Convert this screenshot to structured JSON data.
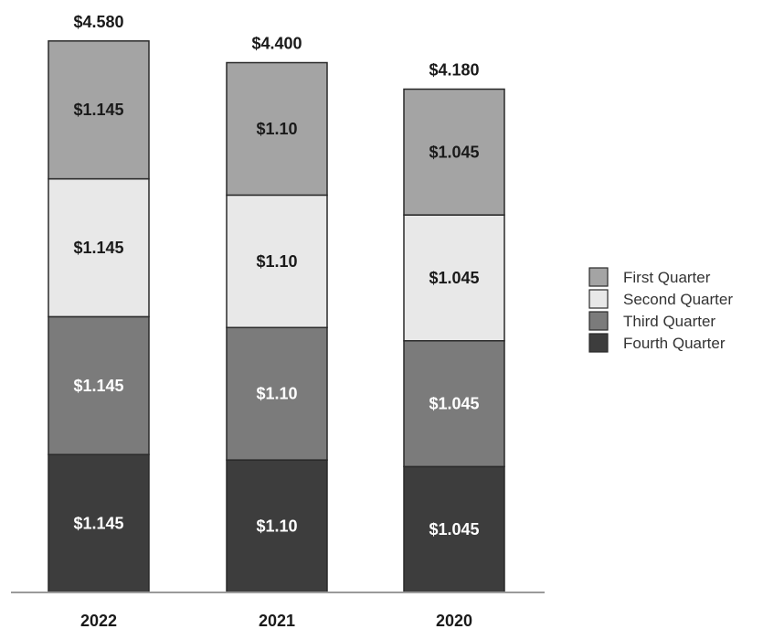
{
  "chart_data": {
    "type": "bar",
    "stacked": true,
    "categories": [
      "2022",
      "2021",
      "2020"
    ],
    "series": [
      {
        "name": "Fourth Quarter",
        "values": [
          1.145,
          1.1,
          1.045
        ],
        "labels": [
          "$1.145",
          "$1.10",
          "$1.045"
        ],
        "color": "#3d3d3d",
        "text_color": "#ffffff"
      },
      {
        "name": "Third Quarter",
        "values": [
          1.145,
          1.1,
          1.045
        ],
        "labels": [
          "$1.145",
          "$1.10",
          "$1.045"
        ],
        "color": "#7b7b7b",
        "text_color": "#ffffff"
      },
      {
        "name": "Second Quarter",
        "values": [
          1.145,
          1.1,
          1.045
        ],
        "labels": [
          "$1.145",
          "$1.10",
          "$1.045"
        ],
        "color": "#e8e8e8",
        "text_color": "#1a1a1a"
      },
      {
        "name": "First Quarter",
        "values": [
          1.145,
          1.1,
          1.045
        ],
        "labels": [
          "$1.145",
          "$1.10",
          "$1.045"
        ],
        "color": "#a4a4a4",
        "text_color": "#1a1a1a"
      }
    ],
    "totals": [
      4.58,
      4.4,
      4.18
    ],
    "total_labels": [
      "$4.580",
      "$4.400",
      "$4.180"
    ],
    "legend": {
      "position": "right",
      "entries": [
        "First Quarter",
        "Second Quarter",
        "Third Quarter",
        "Fourth Quarter"
      ]
    },
    "grid": false,
    "value_axis_visible": false
  }
}
